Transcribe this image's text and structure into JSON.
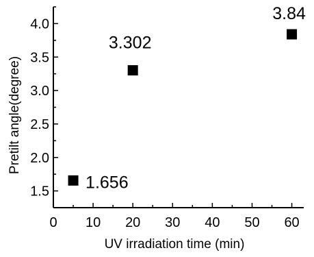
{
  "chart_data": {
    "type": "scatter",
    "title": "",
    "xlabel": "UV irradiation time (min)",
    "ylabel": "Pretilt angle(degree)",
    "xlim": [
      0,
      63
    ],
    "ylim": [
      1.25,
      4.25
    ],
    "xticks": [
      0,
      10,
      20,
      30,
      40,
      50,
      60
    ],
    "yticks": [
      1.5,
      2.0,
      2.5,
      3.0,
      3.5,
      4.0
    ],
    "xtick_labels": [
      "0",
      "10",
      "20",
      "30",
      "40",
      "50",
      "60"
    ],
    "ytick_labels": [
      "1.5",
      "2.0",
      "2.5",
      "3.0",
      "3.5",
      "4.0"
    ],
    "grid": false,
    "legend": "none",
    "marker": "square",
    "marker_color": "#000000",
    "series": [
      {
        "values": [
          {
            "x": 5,
            "y": 1.656,
            "label": "1.656"
          },
          {
            "x": 20,
            "y": 3.302,
            "label": "3.302"
          },
          {
            "x": 60,
            "y": 3.84,
            "label": "3.84"
          }
        ]
      }
    ]
  }
}
